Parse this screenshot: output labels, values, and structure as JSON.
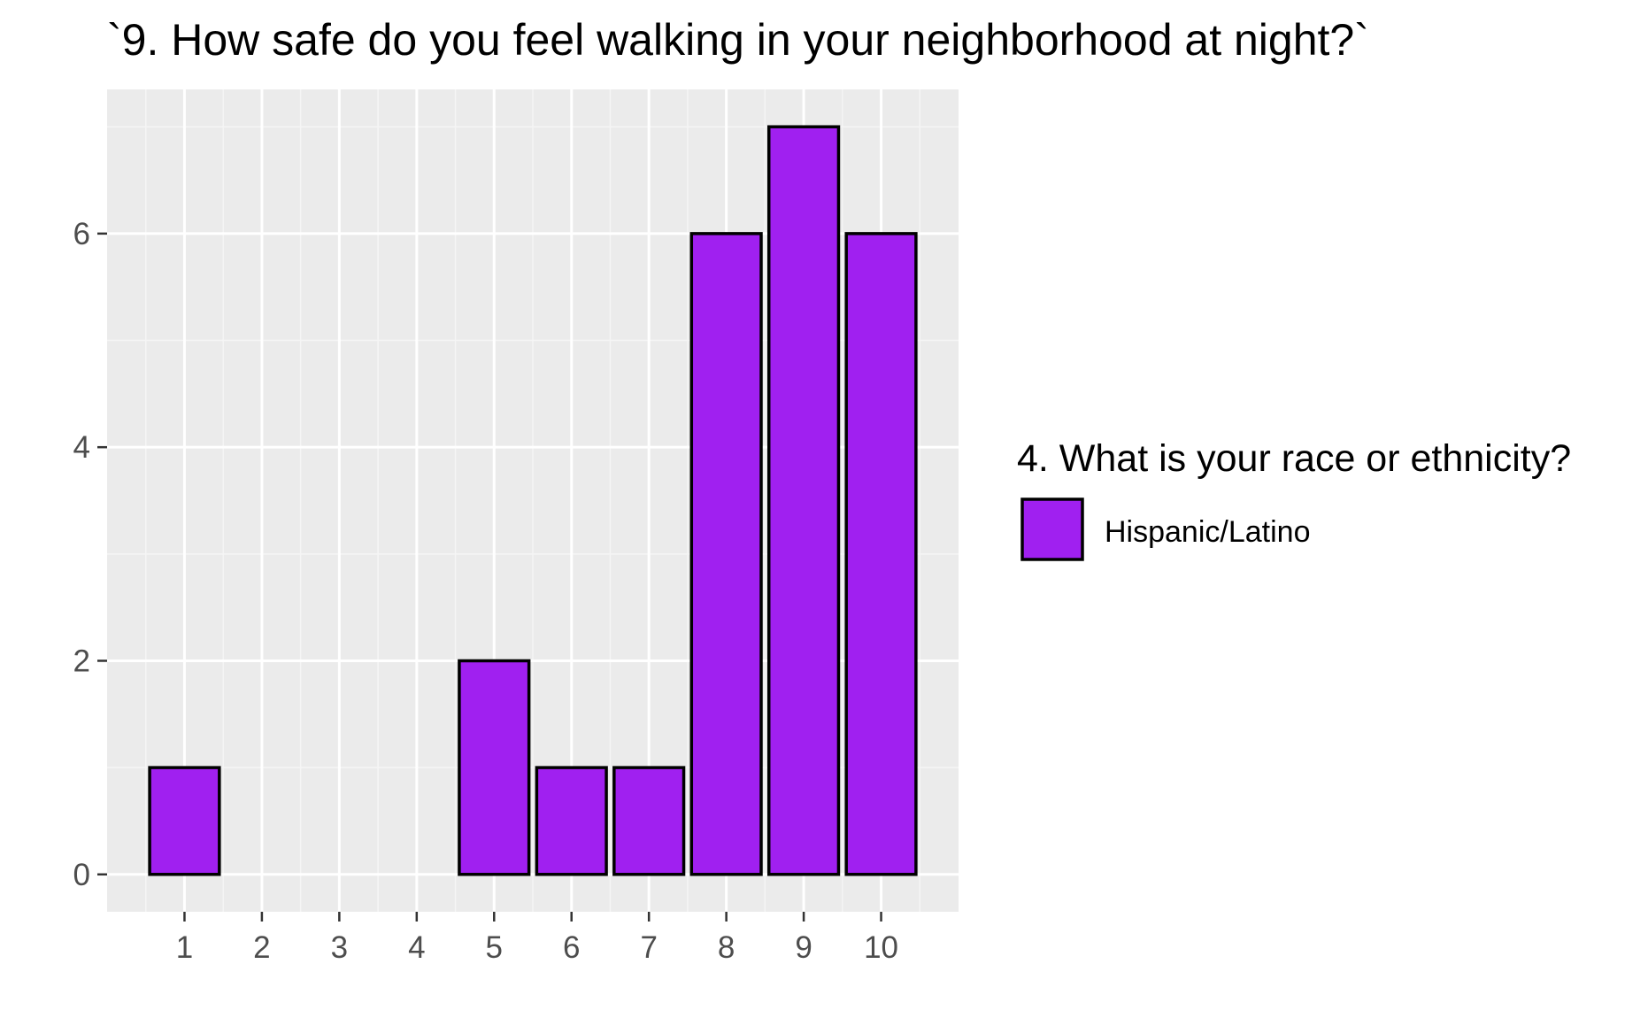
{
  "chart_data": {
    "type": "bar",
    "title": "`9. How safe do you feel walking in your neighborhood at night?`",
    "xlabel": "",
    "ylabel": "",
    "x_ticks": [
      "1",
      "2",
      "3",
      "4",
      "5",
      "6",
      "7",
      "8",
      "9",
      "10"
    ],
    "xlim": [
      0,
      11
    ],
    "y_ticks": [
      0,
      2,
      4,
      6
    ],
    "ylim": [
      -0.35,
      7.35
    ],
    "grid": true,
    "legend": {
      "title": "4. What is your race or ethnicity?",
      "placement": "right",
      "entries": [
        {
          "label": "Hispanic/Latino",
          "color": "#A020F0"
        }
      ]
    },
    "series": [
      {
        "name": "Hispanic/Latino",
        "color": "#A020F0",
        "points": [
          {
            "x": 1,
            "y": 1
          },
          {
            "x": 5,
            "y": 2
          },
          {
            "x": 6,
            "y": 1
          },
          {
            "x": 7,
            "y": 1
          },
          {
            "x": 8,
            "y": 6
          },
          {
            "x": 9,
            "y": 7
          },
          {
            "x": 10,
            "y": 6
          }
        ]
      }
    ],
    "colors": {
      "panel_background": "#EBEBEB",
      "grid_major": "#FFFFFF",
      "grid_minor": "#F5F5F5",
      "bar_outline": "#000000",
      "tick_label": "#4D4D4D"
    }
  }
}
